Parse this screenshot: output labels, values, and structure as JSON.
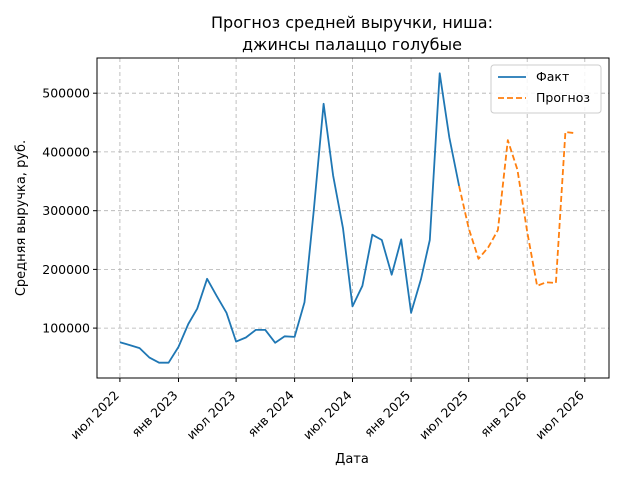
{
  "chart_data": {
    "type": "line",
    "title_lines": [
      "Прогноз средней выручки, ниша:",
      "джинсы палаццо голубые"
    ],
    "xlabel": "Дата",
    "ylabel": "Средняя выручка, руб.",
    "x_ticks": [
      {
        "date": "2022-07-01",
        "label": "июл 2022"
      },
      {
        "date": "2023-01-01",
        "label": "янв 2023"
      },
      {
        "date": "2023-07-01",
        "label": "июл 2023"
      },
      {
        "date": "2024-01-01",
        "label": "янв 2024"
      },
      {
        "date": "2024-07-01",
        "label": "июл 2024"
      },
      {
        "date": "2025-01-01",
        "label": "янв 2025"
      },
      {
        "date": "2025-07-01",
        "label": "июл 2025"
      },
      {
        "date": "2026-01-01",
        "label": "янв 2026"
      },
      {
        "date": "2026-07-01",
        "label": "июл 2026"
      }
    ],
    "y_ticks": [
      100000,
      200000,
      300000,
      400000,
      500000
    ],
    "ylim": [
      15000,
      560000
    ],
    "xlim": [
      "2022-04-20",
      "2026-09-15"
    ],
    "grid": true,
    "legend_position": "top-right",
    "series": [
      {
        "name": "Факт",
        "color": "#1f77b4",
        "style": "solid",
        "points": [
          [
            "2022-07-01",
            76000
          ],
          [
            "2022-08-01",
            71000
          ],
          [
            "2022-09-01",
            66000
          ],
          [
            "2022-10-01",
            50000
          ],
          [
            "2022-11-01",
            41000
          ],
          [
            "2022-12-01",
            41000
          ],
          [
            "2023-01-01",
            68000
          ],
          [
            "2023-02-01",
            107000
          ],
          [
            "2023-03-01",
            133000
          ],
          [
            "2023-04-01",
            184000
          ],
          [
            "2023-05-01",
            155000
          ],
          [
            "2023-06-01",
            126000
          ],
          [
            "2023-07-01",
            77000
          ],
          [
            "2023-08-01",
            84000
          ],
          [
            "2023-09-01",
            97000
          ],
          [
            "2023-10-01",
            97000
          ],
          [
            "2023-11-01",
            75000
          ],
          [
            "2023-12-01",
            86000
          ],
          [
            "2024-01-01",
            85000
          ],
          [
            "2024-02-01",
            144000
          ],
          [
            "2024-03-01",
            299000
          ],
          [
            "2024-04-01",
            482000
          ],
          [
            "2024-05-01",
            360000
          ],
          [
            "2024-06-01",
            270000
          ],
          [
            "2024-07-01",
            137000
          ],
          [
            "2024-08-01",
            172000
          ],
          [
            "2024-09-01",
            259000
          ],
          [
            "2024-10-01",
            250000
          ],
          [
            "2024-11-01",
            191000
          ],
          [
            "2024-12-01",
            251000
          ],
          [
            "2025-01-01",
            126000
          ],
          [
            "2025-02-01",
            183000
          ],
          [
            "2025-03-01",
            250000
          ],
          [
            "2025-04-01",
            534000
          ],
          [
            "2025-05-01",
            425000
          ],
          [
            "2025-06-01",
            342000
          ]
        ]
      },
      {
        "name": "Прогноз",
        "color": "#ff7f0e",
        "style": "dashed",
        "points": [
          [
            "2025-06-01",
            342000
          ],
          [
            "2025-07-01",
            270000
          ],
          [
            "2025-08-01",
            218000
          ],
          [
            "2025-09-01",
            238000
          ],
          [
            "2025-10-01",
            267000
          ],
          [
            "2025-11-01",
            420000
          ],
          [
            "2025-12-01",
            370000
          ],
          [
            "2026-01-01",
            264000
          ],
          [
            "2026-02-01",
            172000
          ],
          [
            "2026-03-01",
            178000
          ],
          [
            "2026-04-01",
            177000
          ],
          [
            "2026-05-01",
            434000
          ],
          [
            "2026-06-01",
            432000
          ]
        ]
      }
    ]
  }
}
